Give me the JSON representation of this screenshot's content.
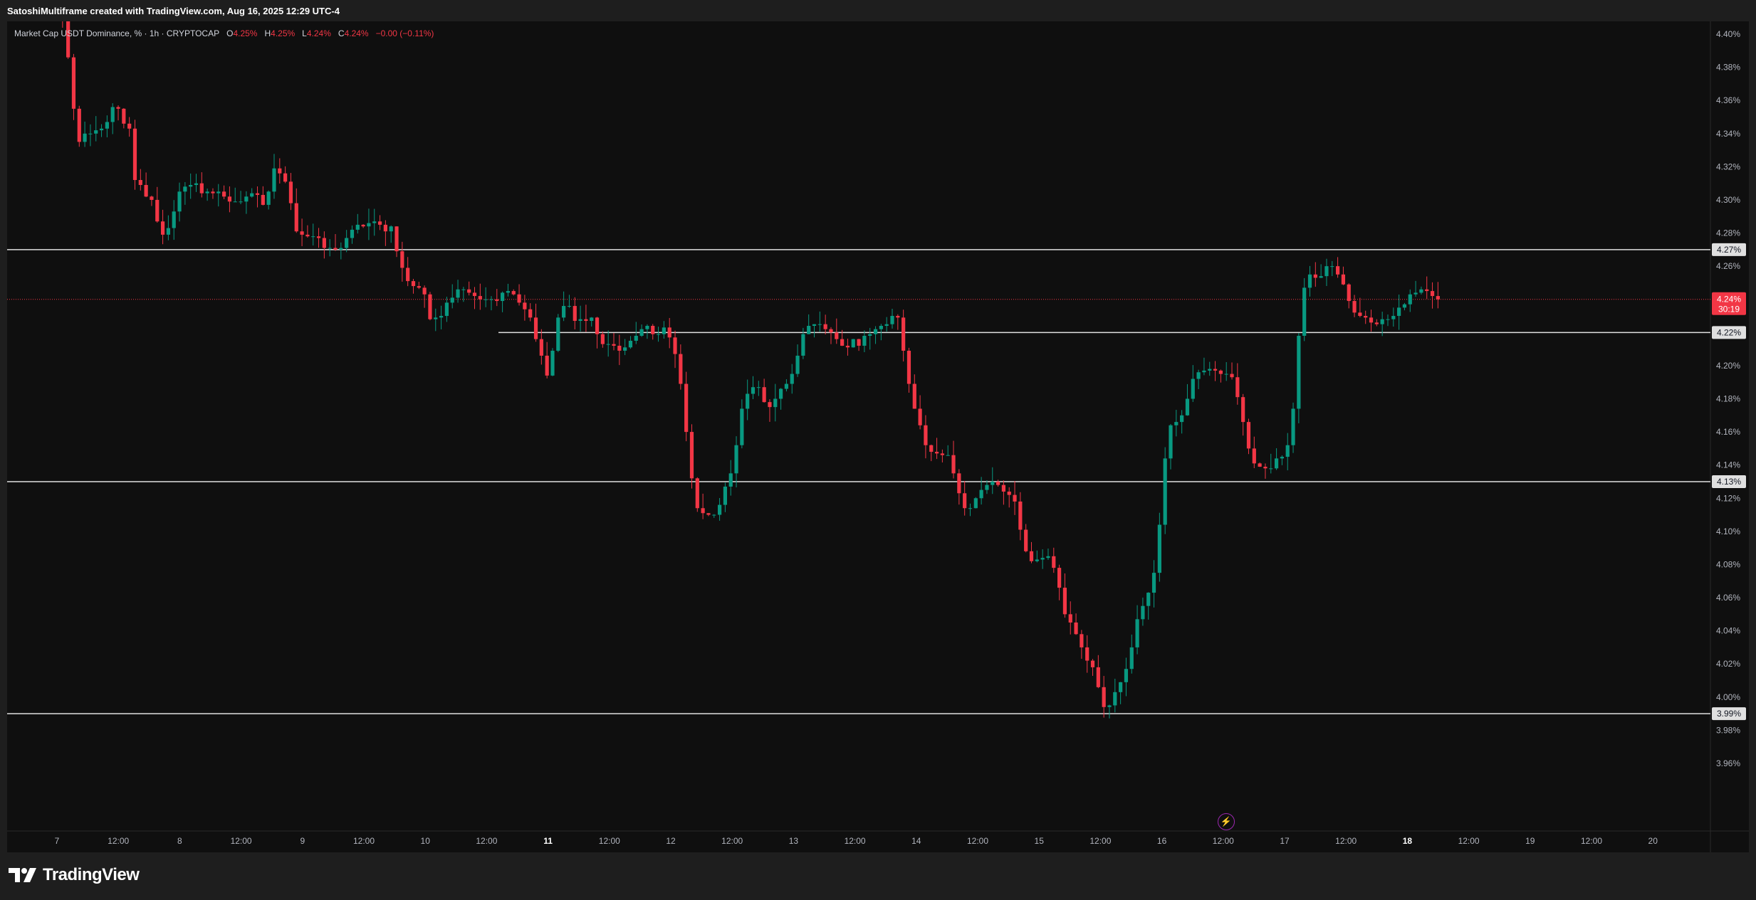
{
  "header": {
    "title": "SatoshiMultiframe created with TradingView.com, Aug 16, 2025 12:29 UTC-4"
  },
  "legend": {
    "symbol": "Market Cap USDT Dominance, % · 1h · CRYPTOCAP",
    "o_label": "O",
    "o_value": "4.25%",
    "h_label": "H",
    "h_value": "4.25%",
    "l_label": "L",
    "l_value": "4.24%",
    "c_label": "C",
    "c_value": "4.24%",
    "change": "−0.00 (−0.11%)"
  },
  "brand": {
    "name": "TradingView"
  },
  "colors": {
    "up": "#089981",
    "down": "#f23645",
    "background": "#0f0f0f",
    "frame": "#1e1e1e",
    "hline": "#e0e0e0"
  },
  "chart_data": {
    "type": "candlestick",
    "ylim": [
      3.94,
      4.412
    ],
    "yticks": [
      "4.40%",
      "4.38%",
      "4.36%",
      "4.34%",
      "4.32%",
      "4.30%",
      "4.28%",
      "4.26%",
      "4.24%",
      "4.22%",
      "4.20%",
      "4.18%",
      "4.16%",
      "4.14%",
      "4.12%",
      "4.10%",
      "4.08%",
      "4.06%",
      "4.04%",
      "4.02%",
      "4.00%",
      "3.98%",
      "3.96%"
    ],
    "xticks": [
      "7",
      "12:00",
      "8",
      "12:00",
      "9",
      "12:00",
      "10",
      "12:00",
      "11",
      "12:00",
      "12",
      "12:00",
      "13",
      "12:00",
      "14",
      "12:00",
      "15",
      "12:00",
      "16",
      "12:00",
      "17",
      "12:00",
      "18",
      "12:00",
      "19",
      "12:00",
      "20"
    ],
    "bold_xticks": [
      "11",
      "18"
    ],
    "horizontal_lines": [
      {
        "value": 4.27,
        "label": "4.27%"
      },
      {
        "value": 4.22,
        "label": "4.22%"
      },
      {
        "value": 4.13,
        "label": "4.13%"
      },
      {
        "value": 3.99,
        "label": "3.99%"
      }
    ],
    "last_price": {
      "value": 4.24,
      "label": "4.24%",
      "countdown": "30:19"
    },
    "keypoints": [
      [
        0,
        4.42
      ],
      [
        5,
        4.35
      ],
      [
        9,
        4.36
      ],
      [
        10,
        4.31
      ],
      [
        14,
        4.28
      ],
      [
        17,
        4.31
      ],
      [
        24,
        4.3
      ],
      [
        27,
        4.32
      ],
      [
        30,
        4.28
      ],
      [
        34,
        4.27
      ],
      [
        38,
        4.29
      ],
      [
        42,
        4.27
      ],
      [
        45,
        4.24
      ],
      [
        48,
        4.225
      ],
      [
        52,
        4.245
      ],
      [
        56,
        4.24
      ],
      [
        60,
        4.245
      ],
      [
        64,
        4.23
      ],
      [
        66,
        4.205
      ],
      [
        70,
        4.235
      ],
      [
        74,
        4.225
      ],
      [
        78,
        4.21
      ],
      [
        82,
        4.22
      ],
      [
        85,
        4.205
      ],
      [
        89,
        4.12
      ],
      [
        92,
        4.11
      ],
      [
        95,
        4.135
      ],
      [
        99,
        4.19
      ],
      [
        102,
        4.17
      ],
      [
        106,
        4.215
      ],
      [
        110,
        4.225
      ],
      [
        114,
        4.215
      ],
      [
        118,
        4.22
      ],
      [
        120,
        4.23
      ],
      [
        122,
        4.19
      ],
      [
        125,
        4.15
      ],
      [
        128,
        4.145
      ],
      [
        131,
        4.11
      ],
      [
        134,
        4.125
      ],
      [
        137,
        4.13
      ],
      [
        140,
        4.09
      ],
      [
        143,
        4.075
      ],
      [
        146,
        4.085
      ],
      [
        149,
        4.05
      ],
      [
        153,
        4.02
      ],
      [
        156,
        3.995
      ],
      [
        158,
        4.005
      ],
      [
        162,
        4.04
      ],
      [
        164,
        4.055
      ],
      [
        166,
        4.07
      ],
      [
        169,
        4.16
      ],
      [
        172,
        4.165
      ],
      [
        174,
        4.2
      ],
      [
        177,
        4.195
      ],
      [
        180,
        4.195
      ],
      [
        182,
        4.175
      ],
      [
        185,
        4.15
      ],
      [
        188,
        4.135
      ],
      [
        192,
        4.145
      ],
      [
        195,
        4.15
      ],
      [
        197,
        4.22
      ],
      [
        199,
        4.25
      ],
      [
        202,
        4.265
      ],
      [
        205,
        4.25
      ],
      [
        208,
        4.235
      ],
      [
        211,
        4.225
      ],
      [
        214,
        4.23
      ],
      [
        217,
        4.24
      ],
      [
        220,
        4.245
      ],
      [
        223,
        4.24
      ]
    ],
    "series": [
      {
        "values": [
          4.423,
          4.412,
          4.386,
          4.355,
          4.335,
          4.34,
          4.34,
          4.342,
          4.343,
          4.347,
          4.356,
          4.355,
          4.346,
          4.343,
          4.312,
          4.309,
          4.302,
          4.3,
          4.287,
          4.279,
          4.283,
          4.293,
          4.305,
          4.308,
          4.309,
          4.31,
          4.304,
          4.305,
          4.304,
          4.305,
          4.302,
          4.299,
          4.299,
          4.299,
          4.302,
          4.304,
          4.303,
          4.297,
          4.305,
          4.319,
          4.316,
          4.311,
          4.298,
          4.281,
          4.279,
          4.278,
          4.278,
          4.277,
          4.271,
          4.271,
          4.27,
          4.271,
          4.277,
          4.282,
          4.285,
          4.284,
          4.286,
          4.287,
          4.285,
          4.281,
          4.284,
          4.269,
          4.259,
          4.251,
          4.248,
          4.247,
          4.243,
          4.228,
          4.229,
          4.23,
          4.238,
          4.241,
          4.246,
          4.246,
          4.244,
          4.242,
          4.24,
          4.24,
          4.24,
          4.239,
          4.244,
          4.245,
          4.243,
          4.238,
          4.234,
          4.229,
          4.216,
          4.206,
          4.194,
          4.209,
          4.229,
          4.236,
          4.236,
          4.227,
          4.228,
          4.227,
          4.229,
          4.219,
          4.213,
          4.213,
          4.212,
          4.209,
          4.211,
          4.215,
          4.218,
          4.222,
          4.224,
          4.219,
          4.219,
          4.223,
          4.217,
          4.207,
          4.189,
          4.16,
          4.132,
          4.114,
          4.111,
          4.11,
          4.11,
          4.116,
          4.127,
          4.135,
          4.152,
          4.174,
          4.183,
          4.187,
          4.187,
          4.178,
          4.175,
          4.18,
          4.186,
          4.189,
          4.195,
          4.206,
          4.219,
          4.224,
          4.225,
          4.225,
          4.222,
          4.22,
          4.216,
          4.212,
          4.211,
          4.216,
          4.212,
          4.218,
          4.219,
          4.222,
          4.224,
          4.225,
          4.23,
          4.229,
          4.209,
          4.189,
          4.174,
          4.164,
          4.152,
          4.148,
          4.147,
          4.146,
          4.146,
          4.135,
          4.123,
          4.114,
          4.114,
          4.12,
          4.125,
          4.128,
          4.13,
          4.128,
          4.124,
          4.122,
          4.118,
          4.101,
          4.088,
          4.082,
          4.083,
          4.084,
          4.085,
          4.078,
          4.066,
          4.05,
          4.045,
          4.038,
          4.03,
          4.022,
          4.018,
          4.006,
          3.994,
          3.995,
          4.003,
          4.009,
          4.017,
          4.03,
          4.047,
          4.055,
          4.063,
          4.075,
          4.104,
          4.144,
          4.164,
          4.166,
          4.17,
          4.18,
          4.192,
          4.196,
          4.197,
          4.198,
          4.197,
          4.195,
          4.195,
          4.193,
          4.181,
          4.166,
          4.15,
          4.141,
          4.139,
          4.138,
          4.138,
          4.144,
          4.145,
          4.152,
          4.174,
          4.218,
          4.247,
          4.255,
          4.253,
          4.254,
          4.26,
          4.26,
          4.255,
          4.249,
          4.239,
          4.232,
          4.23,
          4.229,
          4.226,
          4.225,
          4.228,
          4.228,
          4.23,
          4.235,
          4.237,
          4.243,
          4.244,
          4.246,
          4.245,
          4.242,
          4.24
        ]
      }
    ]
  }
}
